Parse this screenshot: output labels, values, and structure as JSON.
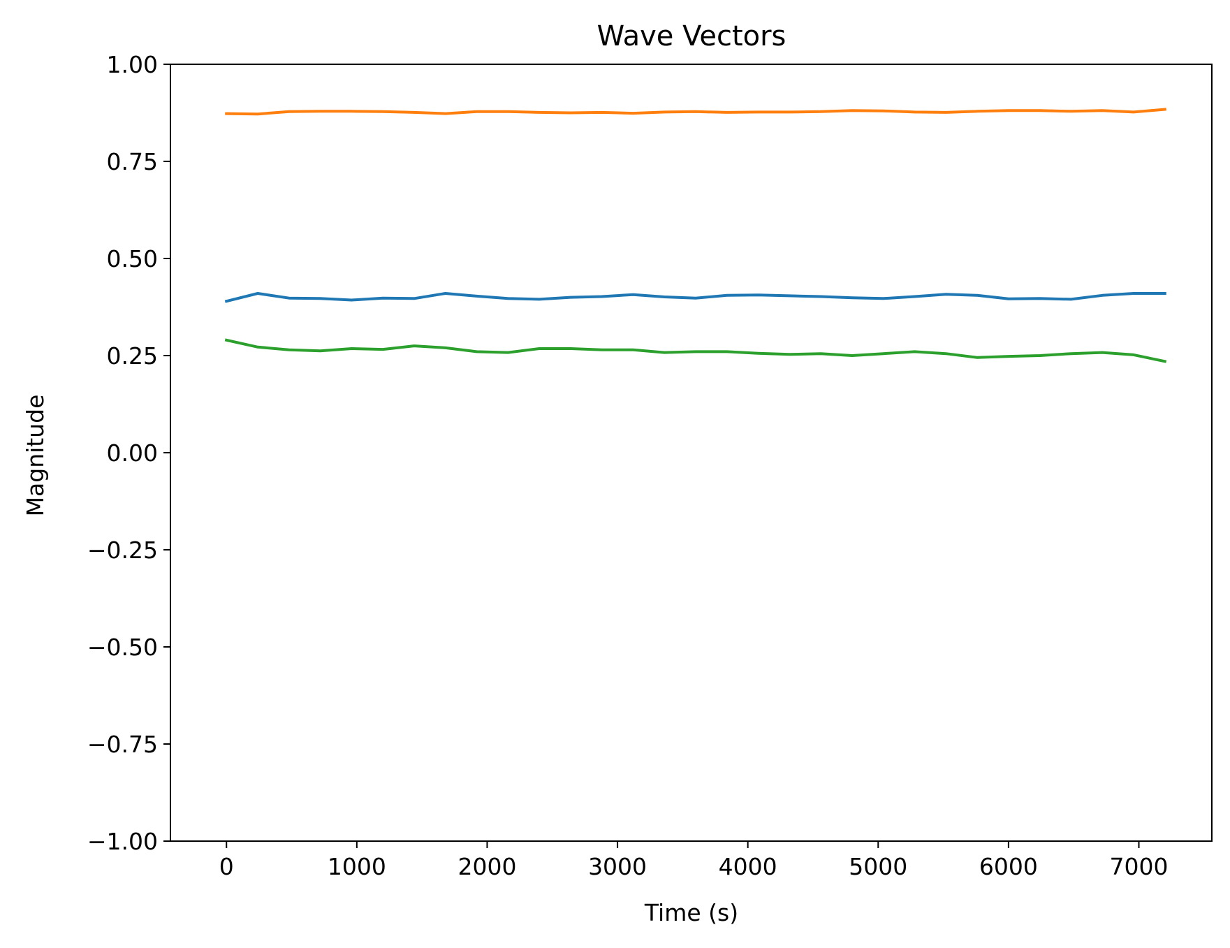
{
  "chart_data": {
    "type": "line",
    "title": "Wave Vectors",
    "xlabel": "Time (s)",
    "ylabel": "Magnitude",
    "xlim": [
      -430,
      7560
    ],
    "ylim": [
      -1.0,
      1.0
    ],
    "xticks": [
      0,
      1000,
      2000,
      3000,
      4000,
      5000,
      6000,
      7000
    ],
    "xtick_labels": [
      "0",
      "1000",
      "2000",
      "3000",
      "4000",
      "5000",
      "6000",
      "7000"
    ],
    "yticks": [
      -1.0,
      -0.75,
      -0.5,
      -0.25,
      0.0,
      0.25,
      0.5,
      0.75,
      1.0
    ],
    "ytick_labels": [
      "−1.00",
      "−0.75",
      "−0.50",
      "−0.25",
      "0.00",
      "0.25",
      "0.50",
      "0.75",
      "1.00"
    ],
    "grid": false,
    "legend": "none",
    "x": [
      0,
      240,
      480,
      720,
      960,
      1200,
      1440,
      1680,
      1920,
      2160,
      2400,
      2640,
      2880,
      3120,
      3360,
      3600,
      3840,
      4080,
      4320,
      4560,
      4800,
      5040,
      5280,
      5520,
      5760,
      6000,
      6240,
      6480,
      6720,
      6960,
      7200
    ],
    "series": [
      {
        "color": "#1f77b4",
        "values": [
          0.39,
          0.41,
          0.398,
          0.397,
          0.393,
          0.398,
          0.397,
          0.41,
          0.403,
          0.397,
          0.395,
          0.4,
          0.402,
          0.407,
          0.401,
          0.398,
          0.405,
          0.406,
          0.404,
          0.402,
          0.399,
          0.397,
          0.402,
          0.408,
          0.405,
          0.396,
          0.397,
          0.395,
          0.405,
          0.41,
          0.41
        ]
      },
      {
        "color": "#ff7f0e",
        "values": [
          0.873,
          0.872,
          0.878,
          0.879,
          0.879,
          0.878,
          0.876,
          0.873,
          0.878,
          0.878,
          0.876,
          0.875,
          0.876,
          0.874,
          0.877,
          0.878,
          0.876,
          0.877,
          0.877,
          0.878,
          0.881,
          0.88,
          0.877,
          0.876,
          0.879,
          0.881,
          0.881,
          0.879,
          0.881,
          0.877,
          0.884
        ]
      },
      {
        "color": "#2ca02c",
        "values": [
          0.29,
          0.272,
          0.265,
          0.262,
          0.268,
          0.266,
          0.275,
          0.27,
          0.26,
          0.258,
          0.268,
          0.268,
          0.265,
          0.265,
          0.258,
          0.26,
          0.26,
          0.256,
          0.253,
          0.255,
          0.25,
          0.255,
          0.26,
          0.255,
          0.245,
          0.248,
          0.25,
          0.255,
          0.258,
          0.252,
          0.235
        ]
      }
    ]
  }
}
